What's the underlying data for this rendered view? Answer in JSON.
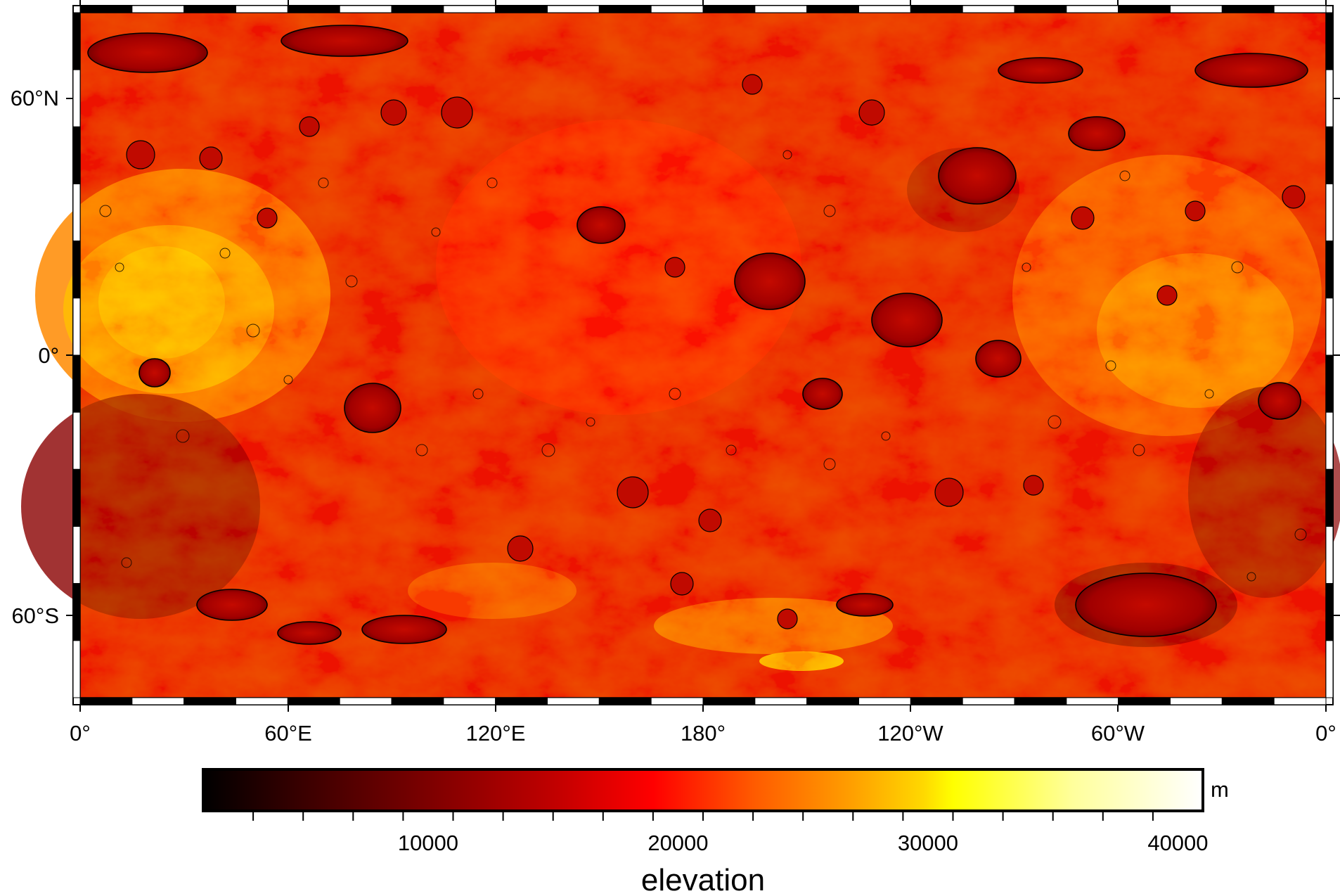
{
  "map": {
    "projection": "equirectangular",
    "longitude_labels": [
      "0°",
      "60°E",
      "120°E",
      "180°",
      "120°W",
      "60°W",
      "0°"
    ],
    "latitude_labels": [
      "60°N",
      "0°",
      "60°S"
    ],
    "frame_style": "alternating black/white ticks",
    "contour_color": "#000000"
  },
  "colorbar": {
    "label": "elevation",
    "unit": "m",
    "ticks": [
      "10000",
      "20000",
      "30000",
      "40000"
    ],
    "tick_values": [
      10000,
      20000,
      30000,
      40000
    ],
    "minor_step": 2000,
    "range": [
      1000,
      41000
    ],
    "colormap_stops": [
      "#000000",
      "#3a0000",
      "#8a0000",
      "#c00000",
      "#ff0000",
      "#ff5a00",
      "#ffa000",
      "#ffd800",
      "#ffff00",
      "#ffff9c",
      "#ffffff"
    ]
  }
}
